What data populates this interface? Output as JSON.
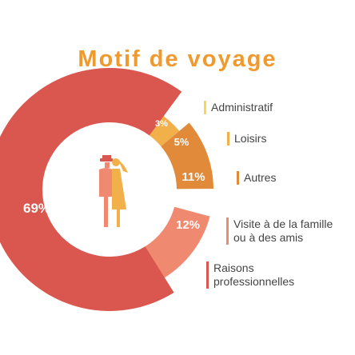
{
  "title": "Motif de voyage",
  "chart_data": {
    "type": "pie",
    "variant": "concentric-arcs",
    "title": "Motif de voyage",
    "unit": "%",
    "slices": [
      {
        "label": "Administratif",
        "value": 3,
        "display": "3%",
        "color": "#f7d65a"
      },
      {
        "label": "Loisirs",
        "value": 5,
        "display": "5%",
        "color": "#f2b04b"
      },
      {
        "label": "Autres",
        "value": 11,
        "display": "11%",
        "color": "#e08a3a"
      },
      {
        "label": "Visite à de la famille ou à des amis",
        "value": 12,
        "display": "12%",
        "color": "#ef8a70"
      },
      {
        "label": "Raisons professionnelles",
        "value": 69,
        "display": "69%",
        "color": "#d9574e"
      }
    ],
    "legend_position": "right"
  },
  "legend": [
    {
      "lines": [
        "Administratif"
      ],
      "color": "#f7d65a"
    },
    {
      "lines": [
        "Loisirs"
      ],
      "color": "#f2b04b"
    },
    {
      "lines": [
        "Autres"
      ],
      "color": "#e08a3a"
    },
    {
      "lines": [
        "Visite à de la famille",
        "ou à des amis"
      ],
      "color": "#ef8a70"
    },
    {
      "lines": [
        "Raisons",
        "professionnelles"
      ],
      "color": "#d9574e"
    }
  ],
  "icon": {
    "name": "traveler-man-woman-icon",
    "colors": [
      "#ef8a70",
      "#f2b04b"
    ]
  }
}
